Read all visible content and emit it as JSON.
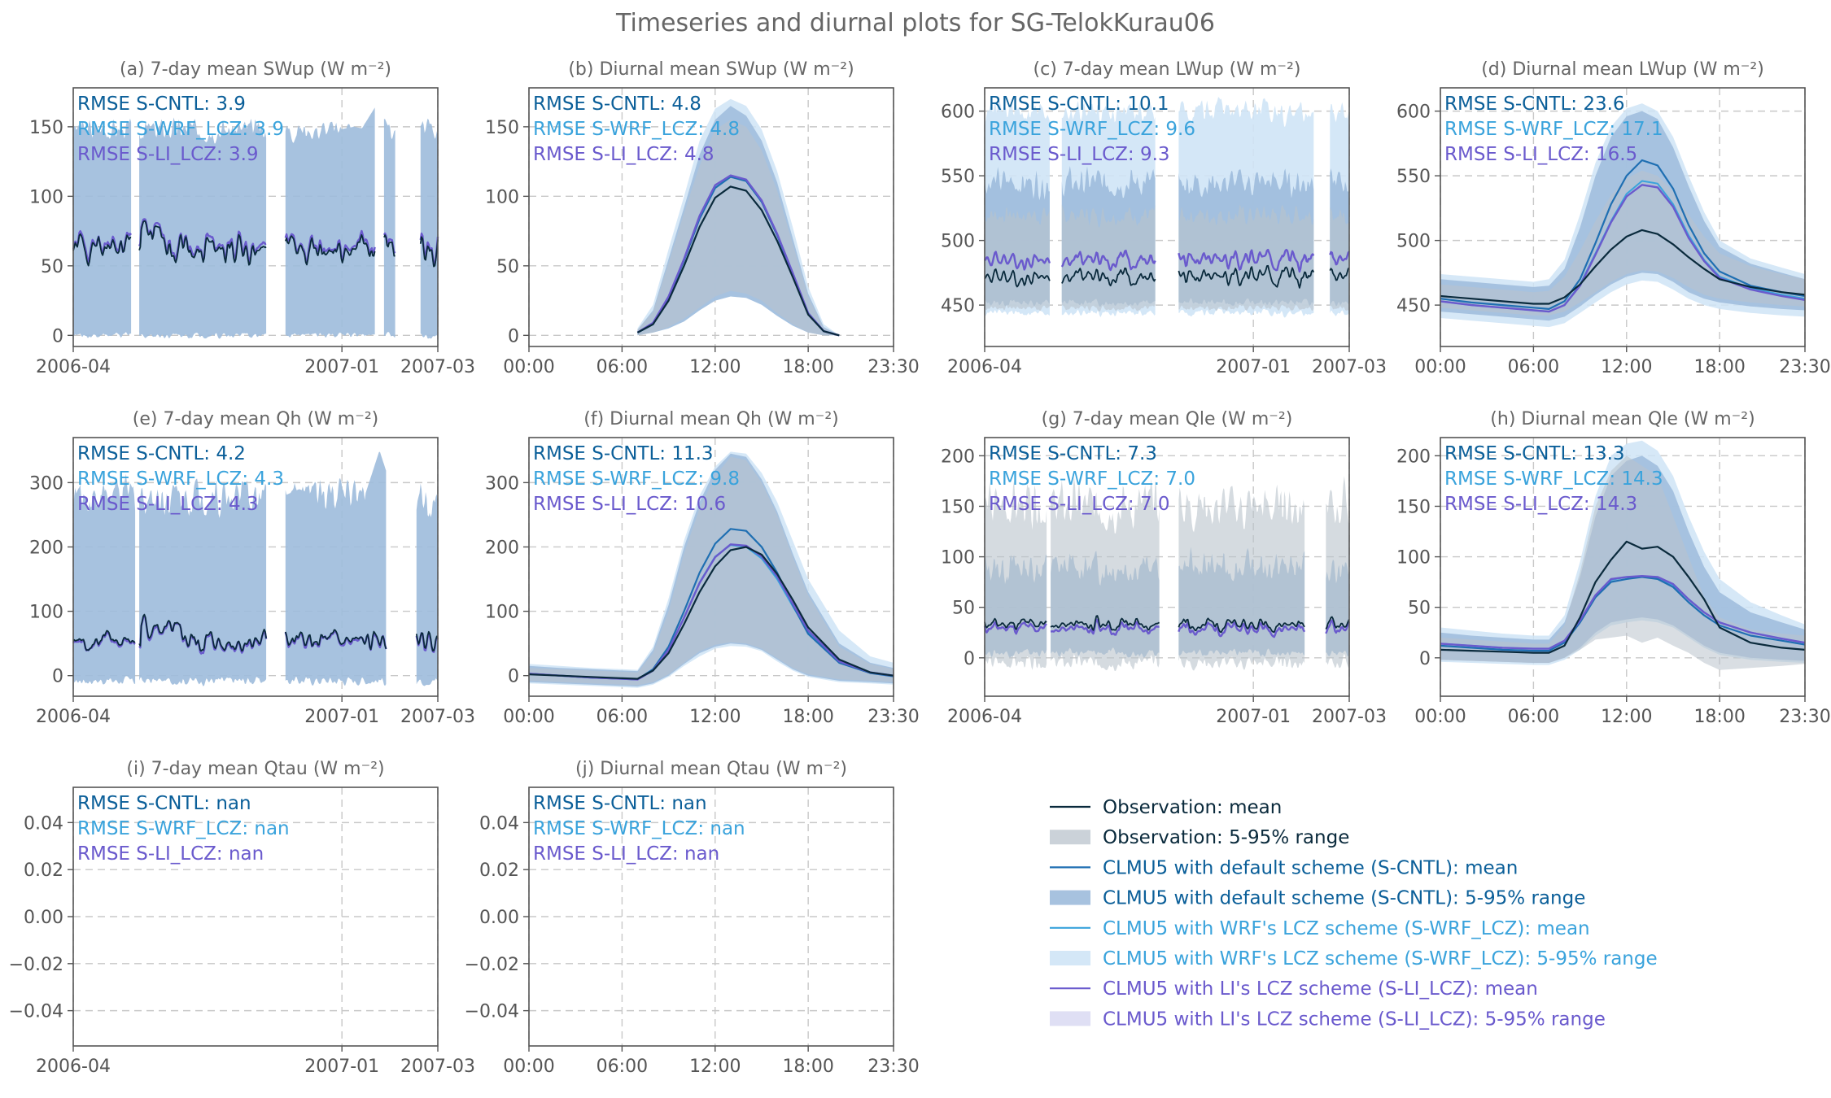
{
  "title": "Timeseries and diurnal plots for SG-TelokKurau06",
  "colors": {
    "obs_line": "#0a2a3c",
    "obs_band": "#b9c3cc",
    "cntl": "#1f6fb2",
    "cntl_band": "#9dbbdc",
    "wrf": "#3aa3dc",
    "wrf_band": "#cfe4f6",
    "li": "#6a5acd",
    "li_band": "#dcdcf3",
    "rmse_cntl_text": "#0b5f99",
    "rmse_wrf_text": "#3aa3dc",
    "rmse_li_text": "#6a5acd"
  },
  "legend": {
    "entries": [
      {
        "label": "Observation: mean",
        "kind": "line",
        "style": "obs"
      },
      {
        "label": "Observation: 5-95% range",
        "kind": "band",
        "style": "obs"
      },
      {
        "label": "CLMU5 with default scheme (S-CNTL): mean",
        "kind": "line",
        "style": "cntl"
      },
      {
        "label": "CLMU5 with default scheme (S-CNTL): 5-95% range",
        "kind": "band",
        "style": "cntl"
      },
      {
        "label": "CLMU5 with WRF's LCZ scheme (S-WRF_LCZ): mean",
        "kind": "line",
        "style": "wrf"
      },
      {
        "label": "CLMU5 with WRF's LCZ scheme (S-WRF_LCZ): 5-95% range",
        "kind": "band",
        "style": "wrf"
      },
      {
        "label": "CLMU5 with LI's LCZ scheme (S-LI_LCZ): mean",
        "kind": "line",
        "style": "li"
      },
      {
        "label": "CLMU5 with LI's LCZ scheme (S-LI_LCZ): 5-95% range",
        "kind": "band",
        "style": "li"
      }
    ]
  },
  "chart_data": [
    {
      "id": "a",
      "type": "line",
      "title": "(a) 7-day mean SWup (W m⁻²)",
      "xkind": "ts",
      "x_ticks": [
        "2006-04",
        "2007-01",
        "2007-03"
      ],
      "yticks": [
        0,
        50,
        100,
        150
      ],
      "ylim": [
        -8,
        178
      ],
      "rmse": [
        "RMSE S-CNTL: 3.9",
        "RMSE S-WRF_LCZ: 3.9",
        "RMSE S-LI_LCZ: 3.9"
      ],
      "gaps": [
        [
          0.16,
          0.18
        ],
        [
          0.53,
          0.58
        ],
        [
          0.83,
          0.85
        ],
        [
          0.885,
          0.95
        ]
      ],
      "obs_mean": {
        "base": 62,
        "amp": 12,
        "seed": 1,
        "step": [
          0.185,
          10
        ]
      },
      "cntl": null,
      "li": {
        "offset": 2,
        "amp_scale": 1.0,
        "seed": 2
      },
      "band_model": {
        "low": 0,
        "high": 148,
        "var": 10,
        "seed": 3,
        "spikes": [
          [
            0.83,
            165
          ],
          [
            0.77,
            150
          ]
        ]
      },
      "band_obs": null
    },
    {
      "id": "b",
      "type": "line",
      "title": "(b) Diurnal mean SWup (W m⁻²)",
      "xkind": "di",
      "x_ticks": [
        "00:00",
        "06:00",
        "12:00",
        "18:00",
        "23:30"
      ],
      "yticks": [
        0,
        50,
        100,
        150
      ],
      "ylim": [
        -8,
        178
      ],
      "rmse": [
        "RMSE S-CNTL: 4.8",
        "RMSE S-WRF_LCZ: 4.8",
        "RMSE S-LI_LCZ: 4.8"
      ],
      "hours": [
        7,
        8,
        9,
        10,
        11,
        12,
        13,
        14,
        15,
        16,
        17,
        18,
        19,
        20
      ],
      "obs_mean": [
        2,
        8,
        25,
        50,
        78,
        99,
        107,
        104,
        90,
        68,
        42,
        15,
        3,
        0
      ],
      "cntl_mean": [
        2,
        8,
        27,
        54,
        84,
        106,
        114,
        111,
        96,
        72,
        44,
        16,
        3,
        0
      ],
      "wrf_mean": [
        2,
        8,
        27,
        54,
        84,
        106,
        114,
        111,
        96,
        72,
        44,
        16,
        3,
        0
      ],
      "li_mean": [
        2,
        9,
        28,
        55,
        86,
        108,
        115,
        112,
        97,
        73,
        45,
        16,
        3,
        0
      ],
      "model_lo": [
        0,
        2,
        5,
        10,
        18,
        25,
        28,
        27,
        22,
        14,
        7,
        2,
        0,
        0
      ],
      "model_hi": [
        4,
        18,
        55,
        92,
        130,
        155,
        165,
        158,
        140,
        110,
        70,
        30,
        6,
        0
      ],
      "wrf_lo": [
        0,
        2,
        5,
        10,
        18,
        25,
        28,
        27,
        22,
        14,
        7,
        2,
        0,
        0
      ],
      "wrf_hi": [
        5,
        22,
        62,
        100,
        140,
        163,
        170,
        165,
        148,
        118,
        78,
        35,
        8,
        0
      ],
      "obs_lo": [
        0,
        2,
        6,
        12,
        20,
        28,
        32,
        30,
        25,
        16,
        8,
        2,
        0,
        0
      ],
      "obs_hi": [
        4,
        17,
        52,
        88,
        122,
        148,
        155,
        150,
        133,
        104,
        66,
        28,
        5,
        0
      ]
    },
    {
      "id": "c",
      "type": "line",
      "title": "(c) 7-day mean LWup (W m⁻²)",
      "xkind": "ts",
      "x_ticks": [
        "2006-04",
        "2007-01",
        "2007-03"
      ],
      "yticks": [
        450,
        500,
        550,
        600
      ],
      "ylim": [
        418,
        618
      ],
      "rmse": [
        "RMSE S-CNTL: 10.1",
        "RMSE S-WRF_LCZ: 9.6",
        "RMSE S-LI_LCZ: 9.3"
      ],
      "gaps": [
        [
          0.18,
          0.21
        ],
        [
          0.47,
          0.53
        ],
        [
          0.905,
          0.945
        ]
      ],
      "obs_mean": {
        "base": 472,
        "amp": 9,
        "seed": 4,
        "step": null
      },
      "cntl": null,
      "li": {
        "offset": 13,
        "amp_scale": 1.0,
        "seed": 5
      },
      "band_model": {
        "low": 452,
        "high": 545,
        "var": 14,
        "seed": 6,
        "spikes": []
      },
      "band_wrf": {
        "low": 444,
        "high": 600,
        "var": 12,
        "seed": 16
      },
      "band_obs": {
        "low": 448,
        "high": 520,
        "var": 10,
        "seed": 7
      }
    },
    {
      "id": "d",
      "type": "line",
      "title": "(d) Diurnal mean LWup (W m⁻²)",
      "xkind": "di",
      "x_ticks": [
        "00:00",
        "06:00",
        "12:00",
        "18:00",
        "23:30"
      ],
      "yticks": [
        450,
        500,
        550,
        600
      ],
      "ylim": [
        418,
        618
      ],
      "rmse": [
        "RMSE S-CNTL: 23.6",
        "RMSE S-WRF_LCZ: 17.1",
        "RMSE S-LI_LCZ: 16.5"
      ],
      "hours": [
        0,
        2,
        4,
        6,
        7,
        8,
        9,
        10,
        11,
        12,
        13,
        14,
        15,
        16,
        17,
        18,
        20,
        22,
        23.5
      ],
      "obs_mean": [
        457,
        455,
        453,
        451,
        451,
        456,
        466,
        480,
        493,
        503,
        508,
        505,
        497,
        487,
        478,
        470,
        464,
        460,
        458
      ],
      "cntl_mean": [
        455,
        452,
        450,
        448,
        447,
        453,
        470,
        498,
        528,
        550,
        562,
        558,
        540,
        512,
        490,
        476,
        465,
        460,
        457
      ],
      "wrf_mean": [
        453,
        450,
        448,
        446,
        445,
        450,
        466,
        490,
        515,
        536,
        546,
        544,
        528,
        504,
        485,
        472,
        463,
        458,
        455
      ],
      "li_mean": [
        453,
        450,
        448,
        446,
        445,
        450,
        465,
        489,
        514,
        534,
        543,
        541,
        526,
        502,
        484,
        471,
        462,
        457,
        454
      ],
      "model_lo": [
        445,
        443,
        441,
        439,
        438,
        441,
        449,
        458,
        466,
        472,
        475,
        474,
        468,
        460,
        455,
        452,
        449,
        447,
        446
      ],
      "model_hi": [
        470,
        468,
        466,
        464,
        465,
        478,
        510,
        550,
        580,
        596,
        600,
        594,
        572,
        542,
        515,
        495,
        482,
        475,
        470
      ],
      "wrf_lo": [
        440,
        438,
        436,
        434,
        433,
        436,
        444,
        452,
        460,
        466,
        469,
        468,
        462,
        455,
        450,
        447,
        444,
        442,
        441
      ],
      "wrf_hi": [
        474,
        472,
        470,
        468,
        470,
        485,
        520,
        560,
        588,
        602,
        606,
        600,
        580,
        550,
        522,
        500,
        486,
        479,
        474
      ],
      "obs_lo": [
        448,
        446,
        444,
        442,
        442,
        445,
        452,
        460,
        468,
        474,
        477,
        476,
        471,
        464,
        458,
        455,
        452,
        450,
        449
      ],
      "obs_hi": [
        466,
        464,
        462,
        460,
        461,
        472,
        492,
        515,
        535,
        548,
        554,
        550,
        538,
        520,
        503,
        490,
        480,
        474,
        470
      ]
    },
    {
      "id": "e",
      "type": "line",
      "title": "(e) 7-day mean Qh (W m⁻²)",
      "xkind": "ts",
      "x_ticks": [
        "2006-04",
        "2007-01",
        "2007-03"
      ],
      "yticks": [
        0,
        100,
        200,
        300
      ],
      "ylim": [
        -32,
        370
      ],
      "rmse": [
        "RMSE S-CNTL: 4.2",
        "RMSE S-WRF_LCZ: 4.3",
        "RMSE S-LI_LCZ: 4.3"
      ],
      "gaps": [
        [
          0.17,
          0.18
        ],
        [
          0.53,
          0.58
        ],
        [
          0.86,
          0.94
        ]
      ],
      "obs_mean": {
        "base": 52,
        "amp": 18,
        "seed": 8,
        "step": [
          0.185,
          30
        ]
      },
      "cntl": null,
      "li": {
        "offset": -2,
        "amp_scale": 1.0,
        "seed": 9
      },
      "band_model": {
        "low": -8,
        "high": 280,
        "var": 35,
        "seed": 10,
        "spikes": [
          [
            0.84,
            350
          ],
          [
            0.62,
            290
          ]
        ]
      },
      "band_obs": null
    },
    {
      "id": "f",
      "type": "line",
      "title": "(f) Diurnal mean Qh (W m⁻²)",
      "xkind": "di",
      "x_ticks": [
        "00:00",
        "06:00",
        "12:00",
        "18:00",
        "23:30"
      ],
      "yticks": [
        0,
        100,
        200,
        300
      ],
      "ylim": [
        -32,
        370
      ],
      "rmse": [
        "RMSE S-CNTL: 11.3",
        "RMSE S-WRF_LCZ: 9.8",
        "RMSE S-LI_LCZ: 10.6"
      ],
      "hours": [
        0,
        2,
        4,
        6,
        7,
        8,
        9,
        10,
        11,
        12,
        13,
        14,
        15,
        16,
        17,
        18,
        20,
        22,
        23.5
      ],
      "obs_mean": [
        2,
        0,
        -2,
        -4,
        -5,
        8,
        35,
        80,
        130,
        170,
        195,
        200,
        188,
        158,
        118,
        75,
        25,
        5,
        0
      ],
      "cntl_mean": [
        3,
        0,
        -3,
        -5,
        -6,
        10,
        45,
        100,
        160,
        205,
        228,
        225,
        200,
        160,
        110,
        65,
        20,
        4,
        -1
      ],
      "wrf_mean": [
        3,
        0,
        -3,
        -5,
        -6,
        8,
        40,
        90,
        145,
        185,
        203,
        200,
        182,
        150,
        108,
        68,
        22,
        5,
        0
      ],
      "li_mean": [
        3,
        0,
        -3,
        -5,
        -6,
        8,
        40,
        90,
        144,
        184,
        204,
        202,
        185,
        154,
        112,
        70,
        22,
        5,
        0
      ],
      "model_lo": [
        -10,
        -12,
        -14,
        -16,
        -17,
        -12,
        0,
        18,
        35,
        45,
        50,
        48,
        40,
        25,
        10,
        0,
        -8,
        -10,
        -12
      ],
      "model_hi": [
        15,
        12,
        10,
        8,
        7,
        40,
        110,
        200,
        270,
        320,
        345,
        340,
        305,
        255,
        190,
        130,
        50,
        20,
        12
      ],
      "wrf_lo": [
        -12,
        -14,
        -16,
        -18,
        -19,
        -14,
        -2,
        15,
        30,
        42,
        46,
        45,
        38,
        22,
        8,
        -2,
        -10,
        -12,
        -14
      ],
      "wrf_hi": [
        18,
        15,
        12,
        10,
        9,
        45,
        120,
        210,
        280,
        325,
        348,
        345,
        315,
        270,
        210,
        150,
        70,
        30,
        20
      ],
      "obs_lo": [
        -8,
        -10,
        -12,
        -14,
        -15,
        -10,
        2,
        20,
        38,
        48,
        52,
        50,
        42,
        27,
        12,
        2,
        -6,
        -8,
        -10
      ],
      "obs_hi": [
        12,
        10,
        8,
        6,
        5,
        35,
        100,
        190,
        260,
        310,
        340,
        335,
        300,
        250,
        185,
        125,
        45,
        18,
        10
      ]
    },
    {
      "id": "g",
      "type": "line",
      "title": "(g) 7-day mean Qle (W m⁻²)",
      "xkind": "ts",
      "x_ticks": [
        "2006-04",
        "2007-01",
        "2007-03"
      ],
      "yticks": [
        0,
        50,
        100,
        150,
        200
      ],
      "ylim": [
        -38,
        218
      ],
      "rmse": [
        "RMSE S-CNTL: 7.3",
        "RMSE S-WRF_LCZ: 7.0",
        "RMSE S-LI_LCZ: 7.0"
      ],
      "gaps": [
        [
          0.17,
          0.18
        ],
        [
          0.48,
          0.53
        ],
        [
          0.88,
          0.935
        ]
      ],
      "obs_mean": {
        "base": 33,
        "amp": 8,
        "seed": 11,
        "step": null
      },
      "cntl": null,
      "li": {
        "offset": -4,
        "amp_scale": 0.8,
        "seed": 12
      },
      "band_model": {
        "low": 5,
        "high": 90,
        "var": 20,
        "seed": 13,
        "spikes": []
      },
      "band_obs": {
        "low": -5,
        "high": 150,
        "var": 30,
        "seed": 14
      }
    },
    {
      "id": "h",
      "type": "line",
      "title": "(h) Diurnal mean Qle (W m⁻²)",
      "xkind": "di",
      "x_ticks": [
        "00:00",
        "06:00",
        "12:00",
        "18:00",
        "23:30"
      ],
      "yticks": [
        0,
        50,
        100,
        150,
        200
      ],
      "ylim": [
        -38,
        218
      ],
      "rmse": [
        "RMSE S-CNTL: 13.3",
        "RMSE S-WRF_LCZ: 14.3",
        "RMSE S-LI_LCZ: 14.3"
      ],
      "hours": [
        0,
        2,
        4,
        6,
        7,
        8,
        9,
        10,
        11,
        12,
        13,
        14,
        15,
        16,
        17,
        18,
        20,
        22,
        23.5
      ],
      "obs_mean": [
        8,
        7,
        6,
        5,
        5,
        12,
        40,
        75,
        97,
        115,
        108,
        110,
        100,
        80,
        58,
        30,
        15,
        10,
        8
      ],
      "cntl_mean": [
        12,
        10,
        8,
        7,
        7,
        15,
        35,
        60,
        75,
        78,
        80,
        78,
        70,
        55,
        42,
        32,
        22,
        17,
        13
      ],
      "wrf_mean": [
        14,
        12,
        10,
        9,
        9,
        17,
        37,
        62,
        77,
        80,
        80,
        79,
        72,
        58,
        45,
        35,
        25,
        19,
        15
      ],
      "li_mean": [
        14,
        12,
        10,
        9,
        9,
        17,
        37,
        62,
        78,
        80,
        81,
        80,
        73,
        58,
        45,
        35,
        25,
        19,
        15
      ],
      "model_lo": [
        -2,
        -3,
        -4,
        -5,
        -5,
        0,
        10,
        25,
        35,
        38,
        40,
        38,
        32,
        22,
        12,
        5,
        0,
        -2,
        -3
      ],
      "model_hi": [
        25,
        22,
        20,
        18,
        18,
        35,
        80,
        140,
        180,
        195,
        200,
        190,
        165,
        125,
        90,
        65,
        45,
        35,
        28
      ],
      "wrf_lo": [
        -4,
        -5,
        -6,
        -7,
        -7,
        -2,
        8,
        22,
        32,
        35,
        37,
        35,
        30,
        20,
        10,
        3,
        -2,
        -4,
        -5
      ],
      "wrf_hi": [
        30,
        27,
        24,
        22,
        22,
        42,
        95,
        160,
        200,
        212,
        215,
        205,
        180,
        140,
        105,
        78,
        55,
        42,
        33
      ],
      "obs_lo": [
        -2,
        -3,
        -4,
        -5,
        -5,
        0,
        8,
        18,
        20,
        22,
        15,
        20,
        12,
        5,
        -5,
        -12,
        -10,
        -8,
        -6
      ],
      "obs_hi": [
        20,
        18,
        16,
        14,
        14,
        32,
        85,
        150,
        185,
        200,
        190,
        180,
        140,
        100,
        60,
        40,
        28,
        24,
        22
      ]
    },
    {
      "id": "i",
      "type": "line",
      "title": "(i) 7-day mean Qtau (W m⁻²)",
      "xkind": "ts",
      "x_ticks": [
        "2006-04",
        "2007-01",
        "2007-03"
      ],
      "yticks": [
        -0.04,
        -0.02,
        0.0,
        0.02,
        0.04
      ],
      "ylim": [
        -0.055,
        0.055
      ],
      "ytick_labels": [
        "−0.04",
        "−0.02",
        "0.00",
        "0.02",
        "0.04"
      ],
      "rmse": [
        "RMSE S-CNTL: nan",
        "RMSE S-WRF_LCZ: nan",
        "RMSE S-LI_LCZ: nan"
      ],
      "empty": true
    },
    {
      "id": "j",
      "type": "line",
      "title": "(j) Diurnal mean Qtau (W m⁻²)",
      "xkind": "di",
      "x_ticks": [
        "00:00",
        "06:00",
        "12:00",
        "18:00",
        "23:30"
      ],
      "yticks": [
        -0.04,
        -0.02,
        0.0,
        0.02,
        0.04
      ],
      "ylim": [
        -0.055,
        0.055
      ],
      "ytick_labels": [
        "−0.04",
        "−0.02",
        "0.00",
        "0.02",
        "0.04"
      ],
      "rmse": [
        "RMSE S-CNTL: nan",
        "RMSE S-WRF_LCZ: nan",
        "RMSE S-LI_LCZ: nan"
      ],
      "empty": true
    }
  ]
}
